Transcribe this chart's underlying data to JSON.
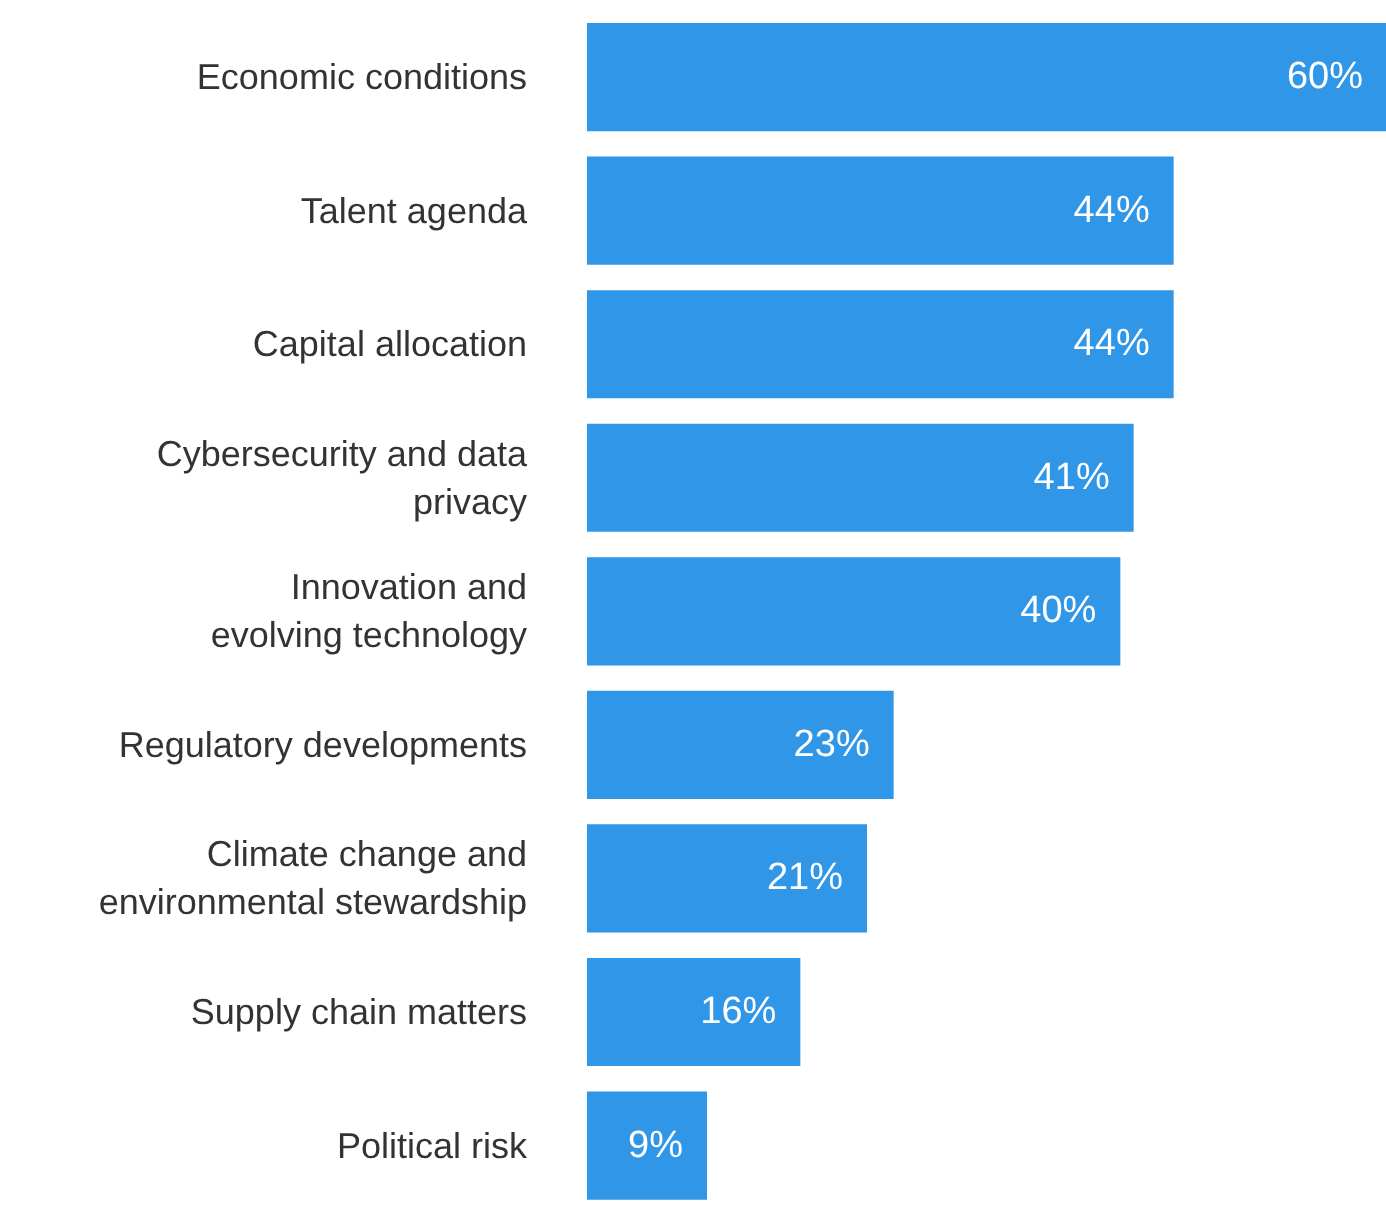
{
  "chart_data": {
    "type": "bar",
    "orientation": "horizontal",
    "categories": [
      "Economic conditions",
      "Talent agenda",
      "Capital allocation",
      "Cybersecurity and data\nprivacy",
      "Innovation and\nevolving technology",
      "Regulatory developments",
      "Climate change and\nenvironmental stewardship",
      "Supply chain matters",
      "Political risk"
    ],
    "values": [
      60,
      44,
      44,
      41,
      40,
      23,
      21,
      16,
      9
    ],
    "value_labels": [
      "60%",
      "44%",
      "44%",
      "41%",
      "40%",
      "23%",
      "21%",
      "16%",
      "9%"
    ],
    "color": "#3096e8"
  }
}
